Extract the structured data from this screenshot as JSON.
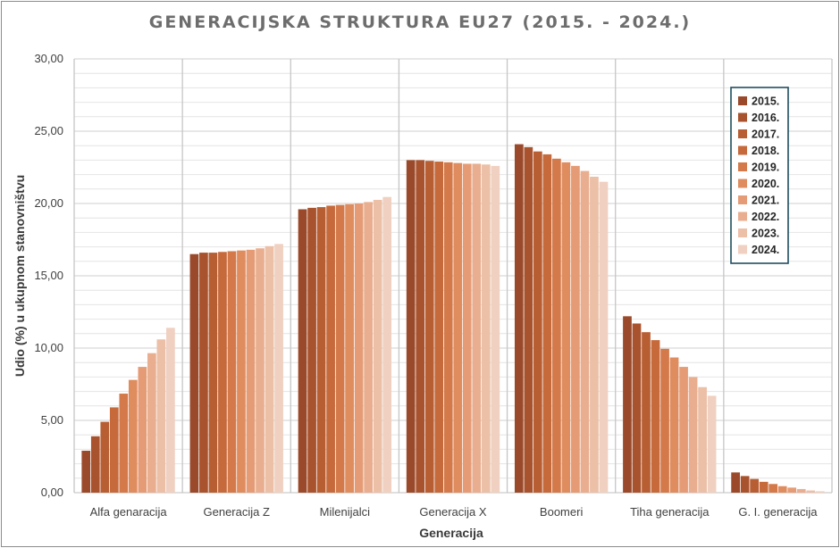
{
  "chart_data": {
    "type": "bar",
    "title": "GENERACIJSKA STRUKTURA EU27 (2015. - 2024.)",
    "xlabel": "Generacija",
    "ylabel": "Udio (%) u ukupnom stanovništvu",
    "ylim": [
      0,
      30
    ],
    "yticks": [
      "0,00",
      "5,00",
      "10,00",
      "15,00",
      "20,00",
      "25,00",
      "30,00"
    ],
    "grid": true,
    "legend_position": "top-right",
    "categories": [
      "Alfa genaracija",
      "Generacija Z",
      "Milenijalci",
      "Generacija X",
      "Boomeri",
      "Tiha generacija",
      "G. I. generacija"
    ],
    "series": [
      {
        "name": "2015.",
        "color": "#9a4a2b",
        "values": [
          2.9,
          16.5,
          19.6,
          23.0,
          24.1,
          12.2,
          1.4
        ]
      },
      {
        "name": "2016.",
        "color": "#a9532e",
        "values": [
          3.9,
          16.6,
          19.7,
          23.0,
          23.9,
          11.7,
          1.15
        ]
      },
      {
        "name": "2017.",
        "color": "#b85e33",
        "values": [
          4.9,
          16.6,
          19.75,
          22.95,
          23.6,
          11.1,
          0.95
        ]
      },
      {
        "name": "2018.",
        "color": "#c66a3b",
        "values": [
          5.9,
          16.65,
          19.85,
          22.9,
          23.4,
          10.55,
          0.75
        ]
      },
      {
        "name": "2019.",
        "color": "#d47a4a",
        "values": [
          6.85,
          16.7,
          19.9,
          22.85,
          23.1,
          9.95,
          0.6
        ]
      },
      {
        "name": "2020.",
        "color": "#df8c5f",
        "values": [
          7.8,
          16.75,
          19.95,
          22.8,
          22.85,
          9.35,
          0.45
        ]
      },
      {
        "name": "2021.",
        "color": "#e59c76",
        "values": [
          8.7,
          16.8,
          20.0,
          22.75,
          22.6,
          8.7,
          0.35
        ]
      },
      {
        "name": "2022.",
        "color": "#e9ae8f",
        "values": [
          9.65,
          16.9,
          20.1,
          22.75,
          22.25,
          8.0,
          0.25
        ]
      },
      {
        "name": "2023.",
        "color": "#ecbfa7",
        "values": [
          10.6,
          17.05,
          20.25,
          22.7,
          21.85,
          7.3,
          0.15
        ]
      },
      {
        "name": "2024.",
        "color": "#f0d0c0",
        "values": [
          11.4,
          17.2,
          20.45,
          22.6,
          21.5,
          6.7,
          0.1
        ]
      }
    ]
  }
}
